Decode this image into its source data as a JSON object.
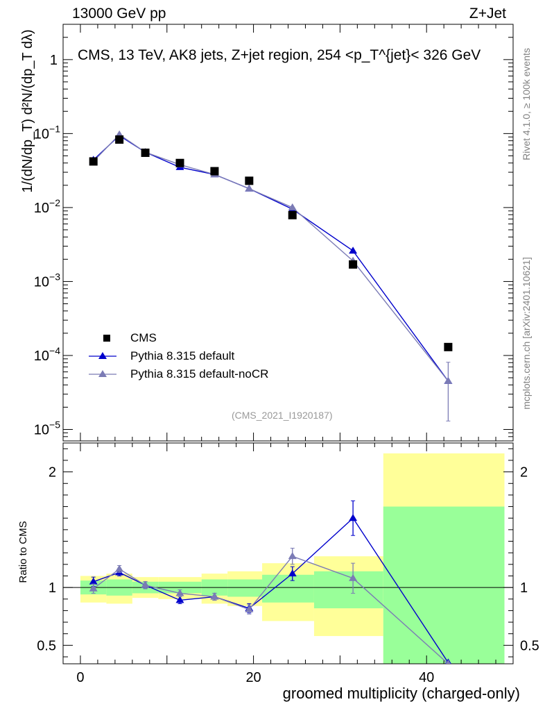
{
  "header": {
    "energy": "13000 GeV pp",
    "process": "Z+Jet"
  },
  "side": {
    "rivet": "Rivet 4.1.0, ≥ 100k events",
    "mcplots": "mcplots.cern.ch [arXiv:2401.10621]"
  },
  "watermark": "(CMS_2021_I1920187)",
  "chart_data": [
    {
      "type": "scatter",
      "panel": "main",
      "title": "CMS, 13 TeV, AK8 jets, Z+jet region, 254 <p_T^{jet}< 326 GeV",
      "ylabel": "1/(dN/dp_T) d²N/(dp_T dλ)",
      "xlabel": "groomed multiplicity (charged-only)",
      "yscale": "log",
      "xlim": [
        -2,
        50
      ],
      "ylim": [
        7e-06,
        3
      ],
      "y_ticks": [
        {
          "v": 1,
          "base": "1",
          "exp": ""
        },
        {
          "v": 0.1,
          "base": "10",
          "exp": "−1"
        },
        {
          "v": 0.01,
          "base": "10",
          "exp": "−2"
        },
        {
          "v": 0.001,
          "base": "10",
          "exp": "−3"
        },
        {
          "v": 0.0001,
          "base": "10",
          "exp": "−4"
        },
        {
          "v": 1e-05,
          "base": "10",
          "exp": "−5"
        }
      ],
      "series": [
        {
          "name": "CMS",
          "marker": "square",
          "color": "#000000",
          "x": [
            1.5,
            4.5,
            7.5,
            11.5,
            15.5,
            19.5,
            24.5,
            31.5,
            42.5
          ],
          "y": [
            0.042,
            0.083,
            0.055,
            0.04,
            0.031,
            0.023,
            0.0079,
            0.0017,
            0.00013
          ]
        },
        {
          "name": "Pythia 8.315 default",
          "marker": "triangle",
          "color": "#0000cc",
          "x": [
            1.5,
            4.5,
            7.5,
            11.5,
            15.5,
            19.5,
            24.5,
            31.5,
            42.5
          ],
          "y": [
            0.044,
            0.094,
            0.056,
            0.035,
            0.028,
            0.018,
            0.0095,
            0.0026,
            4.5e-05
          ]
        },
        {
          "name": "Pythia 8.315 default-noCR",
          "marker": "triangle",
          "color": "#7b7bb5",
          "x": [
            1.5,
            4.5,
            7.5,
            11.5,
            15.5,
            19.5,
            24.5,
            31.5,
            42.5
          ],
          "y": [
            0.042,
            0.097,
            0.056,
            0.038,
            0.028,
            0.018,
            0.01,
            0.0019,
            4.5e-05
          ],
          "yerr_lo": [
            0,
            0,
            0,
            0,
            0,
            0,
            0,
            0,
            3.2e-05
          ],
          "yerr_hi": [
            0,
            0,
            0,
            0,
            0,
            0,
            0,
            0,
            3.6e-05
          ]
        }
      ]
    },
    {
      "type": "line",
      "panel": "ratio",
      "ylabel": "Ratio to CMS",
      "xlabel": "groomed multiplicity (charged-only)",
      "xlim": [
        -2,
        50
      ],
      "ylim": [
        0.34,
        2.25
      ],
      "x_ticks": [
        0,
        20,
        40
      ],
      "y_ticks": [
        0.5,
        1,
        2
      ],
      "bands": {
        "edges": [
          0,
          3,
          6,
          9,
          14,
          17,
          21,
          27,
          35,
          49
        ],
        "yellow_lo": [
          0.87,
          0.86,
          0.91,
          0.9,
          0.86,
          0.84,
          0.71,
          0.58,
          0.3
        ],
        "yellow_hi": [
          1.1,
          1.12,
          1.09,
          1.09,
          1.12,
          1.14,
          1.21,
          1.27,
          2.16
        ],
        "green_lo": [
          0.94,
          0.93,
          0.95,
          0.95,
          0.93,
          0.92,
          0.87,
          0.82,
          0.3
        ],
        "green_hi": [
          1.06,
          1.07,
          1.05,
          1.05,
          1.07,
          1.07,
          1.11,
          1.14,
          1.7
        ]
      },
      "series": [
        {
          "name": "Pythia 8.315 default",
          "color": "#0000cc",
          "x": [
            1.5,
            4.5,
            7.5,
            11.5,
            15.5,
            19.5,
            24.5,
            31.5,
            42.5
          ],
          "y": [
            1.05,
            1.13,
            1.02,
            0.89,
            0.92,
            0.82,
            1.12,
            1.6,
            0.35
          ],
          "err": [
            0.04,
            0.03,
            0.03,
            0.03,
            0.03,
            0.04,
            0.06,
            0.15,
            0
          ]
        },
        {
          "name": "Pythia 8.315 default-noCR",
          "color": "#7b7bb5",
          "x": [
            1.5,
            4.5,
            7.5,
            11.5,
            15.5,
            19.5,
            24.5,
            31.5,
            42.5
          ],
          "y": [
            0.99,
            1.16,
            1.02,
            0.95,
            0.92,
            0.81,
            1.27,
            1.08,
            0.34
          ],
          "err": [
            0.04,
            0.03,
            0.03,
            0.03,
            0.03,
            0.04,
            0.07,
            0.13,
            0
          ]
        }
      ]
    }
  ]
}
